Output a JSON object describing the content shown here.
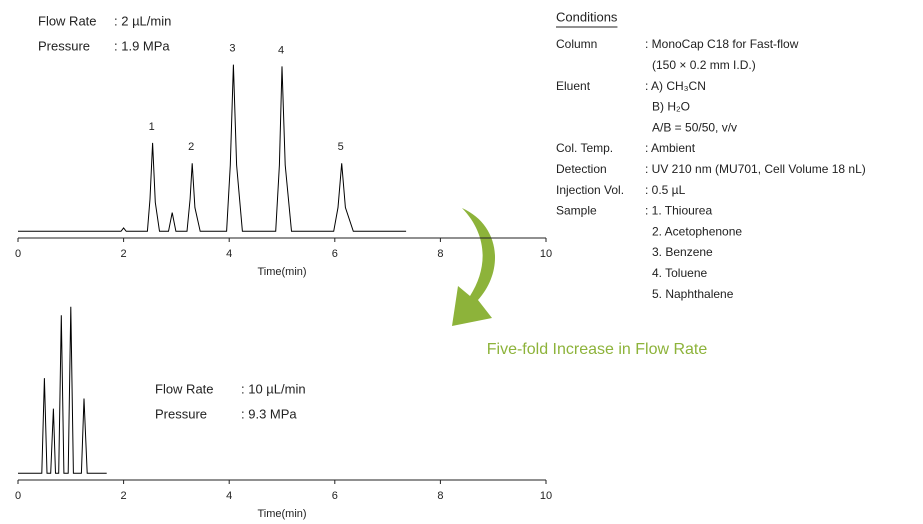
{
  "chart_data": [
    {
      "type": "line",
      "xlabel": "Time(min)",
      "xlim": [
        0,
        10
      ],
      "xticks": [
        0,
        2,
        4,
        6,
        8,
        10
      ],
      "ylim": [
        0,
        100
      ],
      "color": "#000000",
      "x": [
        0,
        1.95,
        2.0,
        2.05,
        2.45,
        2.5,
        2.55,
        2.6,
        2.68,
        2.85,
        2.92,
        2.99,
        3.2,
        3.26,
        3.3,
        3.35,
        3.45,
        3.95,
        4.02,
        4.08,
        4.14,
        4.25,
        4.88,
        4.95,
        5.0,
        5.06,
        5.18,
        5.98,
        6.06,
        6.13,
        6.2,
        6.35,
        7.35
      ],
      "values": [
        1,
        1,
        3,
        1,
        1,
        20,
        53,
        18,
        1,
        1,
        12,
        1,
        1,
        20,
        41,
        15,
        1,
        1,
        40,
        99,
        40,
        1,
        1,
        40,
        98,
        40,
        1,
        1,
        15,
        41,
        15,
        1,
        1
      ],
      "peak_labels": [
        "1",
        "2",
        "3",
        "4",
        "5"
      ],
      "annotations": [
        {
          "label": "Flow Rate",
          "value": ": 2 µL/min"
        },
        {
          "label": "Pressure",
          "value": ": 1.9 MPa"
        }
      ]
    },
    {
      "type": "line",
      "xlabel": "Time(min)",
      "xlim": [
        0,
        10
      ],
      "xticks": [
        0,
        2,
        4,
        6,
        8,
        10
      ],
      "ylim": [
        0,
        100
      ],
      "color": "#000000",
      "x": [
        0,
        0.45,
        0.5,
        0.55,
        0.62,
        0.67,
        0.71,
        0.77,
        0.82,
        0.87,
        0.95,
        1.0,
        1.05,
        1.2,
        1.25,
        1.31,
        1.68
      ],
      "values": [
        1,
        1,
        57,
        1,
        1,
        39,
        1,
        1,
        94,
        1,
        1,
        99,
        1,
        1,
        45,
        1,
        1
      ],
      "annotations": [
        {
          "label": "Flow Rate",
          "value": ": 10 µL/min"
        },
        {
          "label": "Pressure",
          "value": ": 9.3 MPa"
        }
      ]
    }
  ],
  "conditions": {
    "title": "Conditions",
    "rows": [
      {
        "label": "Column",
        "lines": [
          ": MonoCap C18 for Fast-flow",
          "(150 × 0.2 mm I.D.)"
        ]
      },
      {
        "label": "Eluent",
        "lines": [
          ": A) CH₃CN",
          "B) H₂O",
          "A/B = 50/50, v/v"
        ]
      },
      {
        "label": "Col. Temp.",
        "lines": [
          ": Ambient"
        ]
      },
      {
        "label": "Detection",
        "lines": [
          ": UV 210 nm (MU701, Cell Volume 18 nL)"
        ]
      },
      {
        "label": "Injection Vol.",
        "lines": [
          ": 0.5 µL"
        ]
      },
      {
        "label": "Sample",
        "lines": [
          ": 1. Thiourea",
          "2. Acetophenone",
          "3. Benzene",
          "4. Toluene",
          "5. Naphthalene"
        ]
      }
    ]
  },
  "caption": "Five-fold Increase in Flow Rate"
}
